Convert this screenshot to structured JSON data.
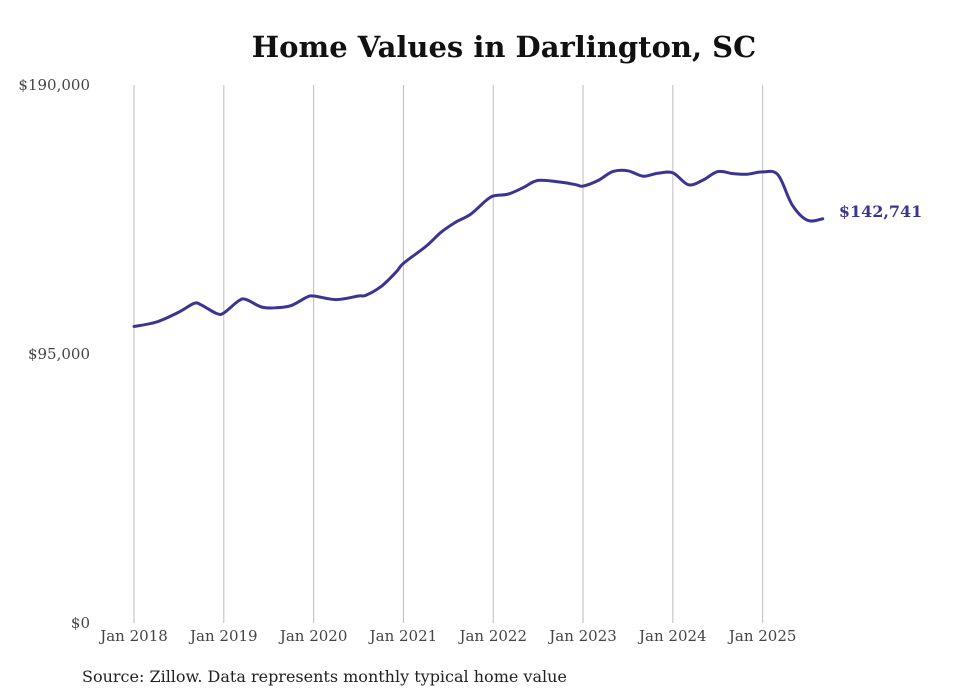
{
  "chart_data": {
    "type": "line",
    "title": "Home Values in Darlington, SC",
    "source": "Source: Zillow. Data represents monthly typical home value",
    "ylim": [
      0,
      190000
    ],
    "y_ticks": [
      "$0",
      "$95,000",
      "$190,000"
    ],
    "y_tick_values": [
      0,
      95000,
      190000
    ],
    "x_tick_labels": [
      "Jan 2018",
      "Jan 2019",
      "Jan 2020",
      "Jan 2021",
      "Jan 2022",
      "Jan 2023",
      "Jan 2024",
      "Jan 2025"
    ],
    "x_tick_values": [
      2018,
      2019,
      2020,
      2021,
      2022,
      2023,
      2024,
      2025
    ],
    "xlim": [
      2018,
      2025.75
    ],
    "grid": "vertical",
    "series": [
      {
        "name": "Typical home value",
        "color": "#3b3592",
        "end_label": "$142,741",
        "points": [
          [
            2018.0,
            104700
          ],
          [
            2018.25,
            106300
          ],
          [
            2018.5,
            109800
          ],
          [
            2018.67,
            112900
          ],
          [
            2018.75,
            112300
          ],
          [
            2018.92,
            109300
          ],
          [
            2019.0,
            109500
          ],
          [
            2019.17,
            113900
          ],
          [
            2019.25,
            114200
          ],
          [
            2019.42,
            111600
          ],
          [
            2019.58,
            111300
          ],
          [
            2019.75,
            112100
          ],
          [
            2019.92,
            115000
          ],
          [
            2020.0,
            115500
          ],
          [
            2020.25,
            114200
          ],
          [
            2020.5,
            115500
          ],
          [
            2020.58,
            115700
          ],
          [
            2020.75,
            118800
          ],
          [
            2020.92,
            124000
          ],
          [
            2021.0,
            127000
          ],
          [
            2021.25,
            133000
          ],
          [
            2021.42,
            138000
          ],
          [
            2021.58,
            141500
          ],
          [
            2021.75,
            144400
          ],
          [
            2021.92,
            149200
          ],
          [
            2022.0,
            150800
          ],
          [
            2022.17,
            151500
          ],
          [
            2022.33,
            153700
          ],
          [
            2022.5,
            156300
          ],
          [
            2022.75,
            155700
          ],
          [
            2022.92,
            154800
          ],
          [
            2023.0,
            154300
          ],
          [
            2023.17,
            156300
          ],
          [
            2023.33,
            159400
          ],
          [
            2023.5,
            159700
          ],
          [
            2023.67,
            157800
          ],
          [
            2023.83,
            158800
          ],
          [
            2024.0,
            159000
          ],
          [
            2024.17,
            154800
          ],
          [
            2024.33,
            156300
          ],
          [
            2024.5,
            159400
          ],
          [
            2024.67,
            158700
          ],
          [
            2024.83,
            158500
          ],
          [
            2025.0,
            159300
          ],
          [
            2025.17,
            158300
          ],
          [
            2025.33,
            147600
          ],
          [
            2025.5,
            142200
          ],
          [
            2025.67,
            142741
          ]
        ]
      }
    ]
  }
}
